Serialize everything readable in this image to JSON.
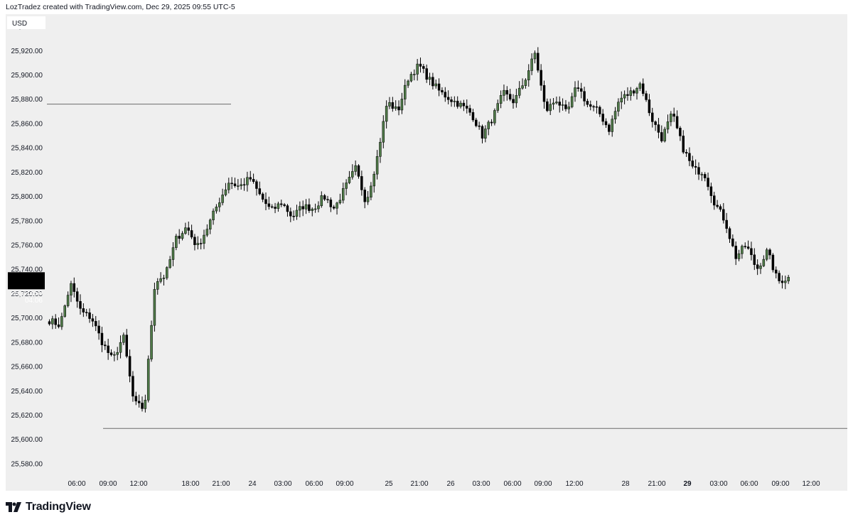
{
  "header": {
    "text": "LozTradez created with TradingView.com, Dec 29, 2025 09:55 UTC-5"
  },
  "footer": {
    "brand": "TradingView",
    "logo_icon": "tradingview-logo-icon"
  },
  "currency_badge": "USD",
  "price_label": {
    "price": "25,733.50",
    "countdown": "04:06"
  },
  "colors": {
    "background": "#efefef",
    "up_fill": "#4f7a48",
    "down_fill": "#000000",
    "wick": "#000000",
    "level_line": "#6b6b6b",
    "price_label_bg": "#000000"
  },
  "chart_data": {
    "type": "candlestick",
    "title": "",
    "ylim": [
      25570,
      25950
    ],
    "y_ticks": [
      "25,580.00",
      "25,600.00",
      "25,620.00",
      "25,640.00",
      "25,660.00",
      "25,680.00",
      "25,700.00",
      "25,720.00",
      "25,740.00",
      "25,760.00",
      "25,780.00",
      "25,800.00",
      "25,820.00",
      "25,840.00",
      "25,860.00",
      "25,880.00",
      "25,900.00",
      "25,920.00",
      "25,940.00"
    ],
    "x_ticks": [
      {
        "label": "06:00",
        "bold": false
      },
      {
        "label": "09:00",
        "bold": false
      },
      {
        "label": "12:00",
        "bold": false
      },
      {
        "label": "18:00",
        "bold": false
      },
      {
        "label": "21:00",
        "bold": false
      },
      {
        "label": "24",
        "bold": false
      },
      {
        "label": "03:00",
        "bold": false
      },
      {
        "label": "06:00",
        "bold": false
      },
      {
        "label": "09:00",
        "bold": false
      },
      {
        "label": "25",
        "bold": false
      },
      {
        "label": "21:00",
        "bold": false
      },
      {
        "label": "26",
        "bold": false
      },
      {
        "label": "03:00",
        "bold": false
      },
      {
        "label": "06:00",
        "bold": false
      },
      {
        "label": "09:00",
        "bold": false
      },
      {
        "label": "12:00",
        "bold": false
      },
      {
        "label": "28",
        "bold": false
      },
      {
        "label": "21:00",
        "bold": false
      },
      {
        "label": "29",
        "bold": true
      },
      {
        "label": "03:00",
        "bold": false
      },
      {
        "label": "06:00",
        "bold": false
      },
      {
        "label": "09:00",
        "bold": false
      },
      {
        "label": "12:00",
        "bold": false
      }
    ],
    "levels": [
      {
        "price": 25876,
        "extent": "partial"
      },
      {
        "price": 25609,
        "extent": "full"
      }
    ],
    "path": [
      25698,
      25694,
      25728,
      25705,
      25700,
      25680,
      25665,
      25685,
      25630,
      25625,
      25730,
      25735,
      25765,
      25775,
      25758,
      25775,
      25795,
      25812,
      25808,
      25815,
      25800,
      25788,
      25795,
      25783,
      25792,
      25790,
      25800,
      25790,
      25807,
      25823,
      25795,
      25830,
      25878,
      25870,
      25898,
      25908,
      25896,
      25886,
      25880,
      25875,
      25868,
      25850,
      25865,
      25885,
      25878,
      25895,
      25918,
      25870,
      25880,
      25868,
      25892,
      25875,
      25870,
      25855,
      25880,
      25885,
      25893,
      25865,
      25848,
      25868,
      25840,
      25822,
      25820,
      25795,
      25780,
      25750,
      25760,
      25740,
      25755,
      25730,
      25733
    ],
    "last_price": 25733.5
  }
}
